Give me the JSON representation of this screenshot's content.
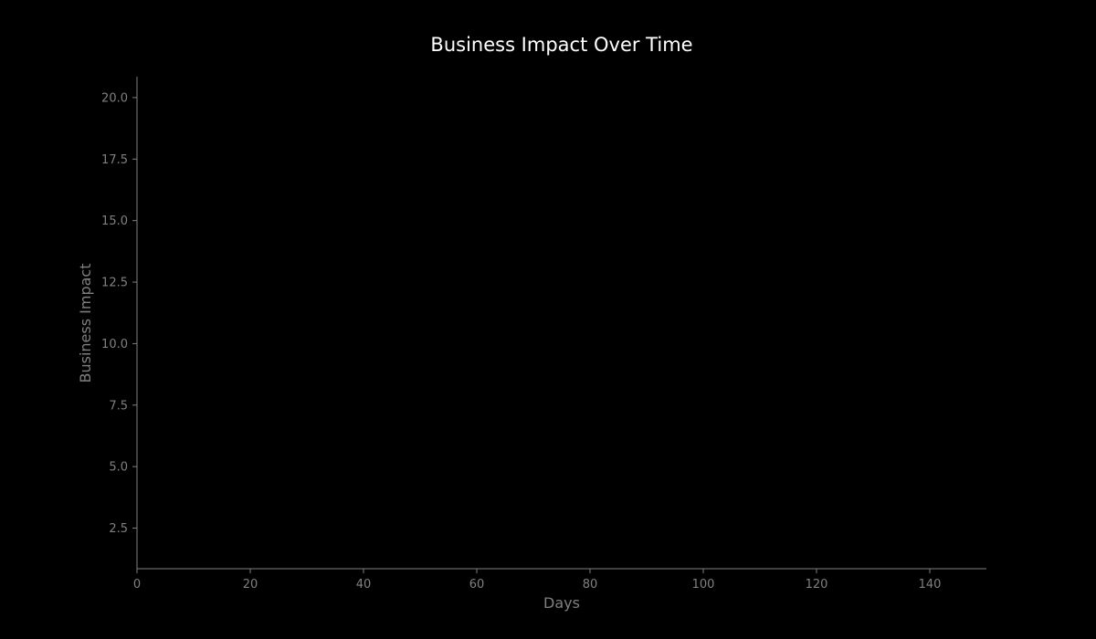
{
  "chart_data": {
    "type": "line",
    "title": "Business Impact Over Time",
    "xlabel": "Days",
    "ylabel": "Business Impact",
    "xlim": [
      0,
      150
    ],
    "ylim": [
      0.85,
      20.85
    ],
    "xticks": [
      "0",
      "20",
      "40",
      "60",
      "80",
      "100",
      "120",
      "140"
    ],
    "yticks": [
      "2.5",
      "5.0",
      "7.5",
      "10.0",
      "12.5",
      "15.0",
      "17.5",
      "20.0"
    ],
    "series": [],
    "grid": false,
    "legend": "none",
    "background_color": "#000000",
    "axis_color": "#808080",
    "title_color": "#ffffff"
  }
}
